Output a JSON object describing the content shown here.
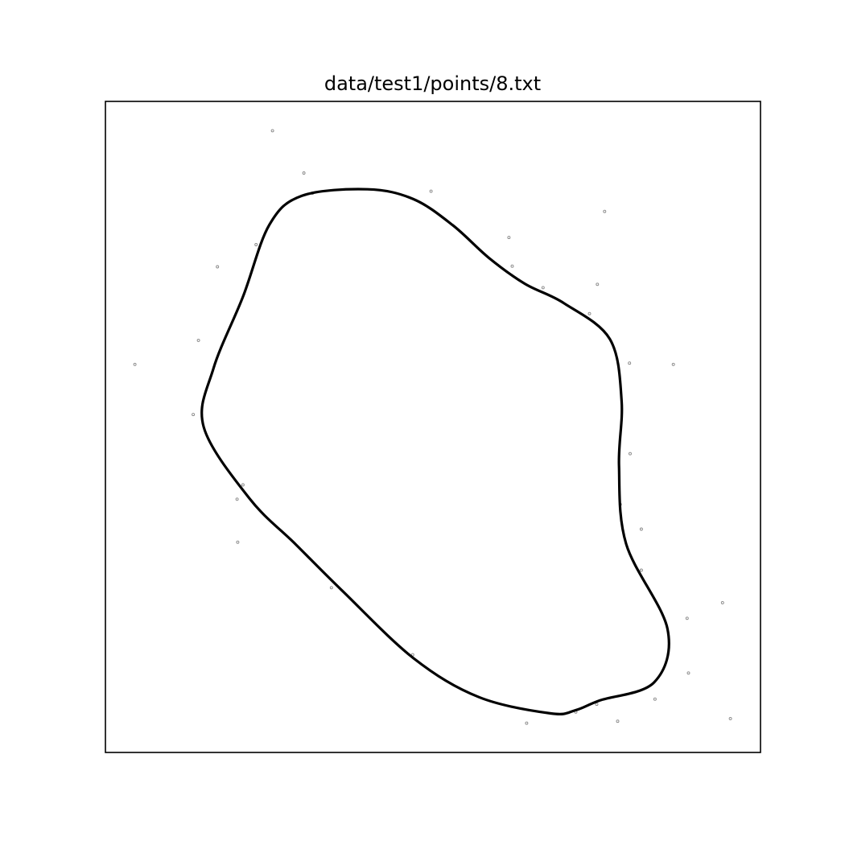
{
  "chart_data": {
    "type": "scatter",
    "title": "data/test1/points/8.txt",
    "xlabel": "",
    "ylabel": "",
    "axes_ticks_visible": false,
    "grid": false,
    "xlim": [
      0,
      1
    ],
    "ylim": [
      0,
      1
    ],
    "colors": {
      "curve": "#000000",
      "points": "#888888",
      "frame": "#000000"
    },
    "points": [
      {
        "x": 0.255,
        "y": 0.955
      },
      {
        "x": 0.303,
        "y": 0.89
      },
      {
        "x": 0.316,
        "y": 0.859
      },
      {
        "x": 0.497,
        "y": 0.862
      },
      {
        "x": 0.762,
        "y": 0.831
      },
      {
        "x": 0.616,
        "y": 0.791
      },
      {
        "x": 0.23,
        "y": 0.78
      },
      {
        "x": 0.171,
        "y": 0.746
      },
      {
        "x": 0.621,
        "y": 0.747
      },
      {
        "x": 0.751,
        "y": 0.719
      },
      {
        "x": 0.668,
        "y": 0.714
      },
      {
        "x": 0.739,
        "y": 0.674
      },
      {
        "x": 0.142,
        "y": 0.633
      },
      {
        "x": 0.045,
        "y": 0.596
      },
      {
        "x": 0.8,
        "y": 0.598
      },
      {
        "x": 0.867,
        "y": 0.596
      },
      {
        "x": 0.134,
        "y": 0.519
      },
      {
        "x": 0.801,
        "y": 0.459
      },
      {
        "x": 0.21,
        "y": 0.411
      },
      {
        "x": 0.201,
        "y": 0.389
      },
      {
        "x": 0.786,
        "y": 0.381
      },
      {
        "x": 0.818,
        "y": 0.343
      },
      {
        "x": 0.202,
        "y": 0.323
      },
      {
        "x": 0.345,
        "y": 0.253
      },
      {
        "x": 0.818,
        "y": 0.28
      },
      {
        "x": 0.942,
        "y": 0.23
      },
      {
        "x": 0.888,
        "y": 0.206
      },
      {
        "x": 0.469,
        "y": 0.15
      },
      {
        "x": 0.89,
        "y": 0.122
      },
      {
        "x": 0.839,
        "y": 0.082
      },
      {
        "x": 0.75,
        "y": 0.074
      },
      {
        "x": 0.718,
        "y": 0.062
      },
      {
        "x": 0.643,
        "y": 0.045
      },
      {
        "x": 0.782,
        "y": 0.048
      },
      {
        "x": 0.954,
        "y": 0.052
      }
    ],
    "curve": [
      {
        "x": 0.4,
        "y": 0.865
      },
      {
        "x": 0.47,
        "y": 0.85
      },
      {
        "x": 0.53,
        "y": 0.81
      },
      {
        "x": 0.585,
        "y": 0.76
      },
      {
        "x": 0.64,
        "y": 0.72
      },
      {
        "x": 0.7,
        "y": 0.69
      },
      {
        "x": 0.77,
        "y": 0.635
      },
      {
        "x": 0.788,
        "y": 0.54
      },
      {
        "x": 0.784,
        "y": 0.44
      },
      {
        "x": 0.795,
        "y": 0.32
      },
      {
        "x": 0.858,
        "y": 0.19
      },
      {
        "x": 0.838,
        "y": 0.108
      },
      {
        "x": 0.755,
        "y": 0.08
      },
      {
        "x": 0.718,
        "y": 0.065
      },
      {
        "x": 0.68,
        "y": 0.06
      },
      {
        "x": 0.57,
        "y": 0.085
      },
      {
        "x": 0.47,
        "y": 0.145
      },
      {
        "x": 0.36,
        "y": 0.25
      },
      {
        "x": 0.29,
        "y": 0.32
      },
      {
        "x": 0.22,
        "y": 0.39
      },
      {
        "x": 0.15,
        "y": 0.5
      },
      {
        "x": 0.165,
        "y": 0.59
      },
      {
        "x": 0.21,
        "y": 0.7
      },
      {
        "x": 0.25,
        "y": 0.81
      },
      {
        "x": 0.3,
        "y": 0.855
      }
    ]
  }
}
